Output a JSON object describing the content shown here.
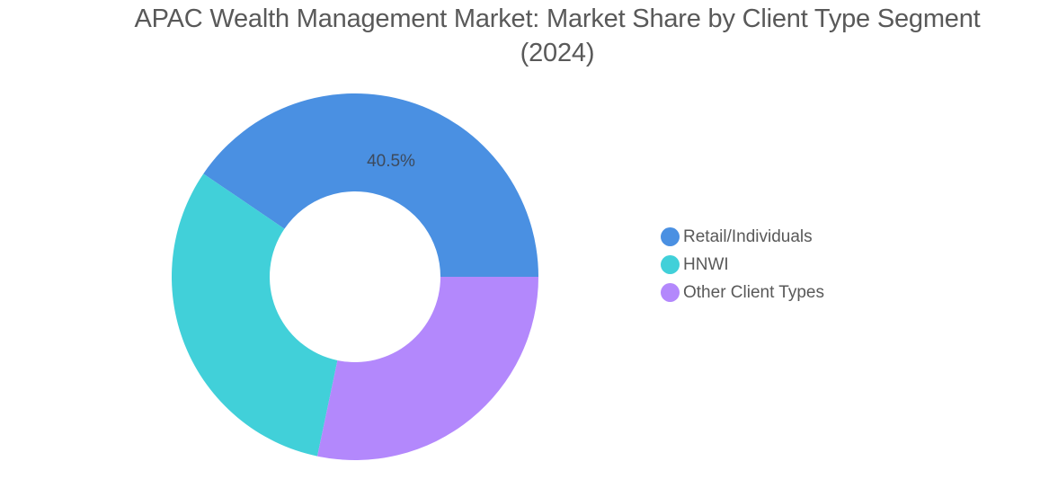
{
  "title": {
    "line1": "APAC Wealth Management Market: Market Share by Client Type Segment",
    "line2": "(2024)"
  },
  "legend": {
    "items": [
      {
        "label": "Retail/Individuals",
        "color": "#4a90e2"
      },
      {
        "label": "HNWI",
        "color": "#41d0d9"
      },
      {
        "label": "Other Client Types",
        "color": "#b388fc"
      }
    ]
  },
  "slice_labels": {
    "retail": "40.5%"
  },
  "chart_data": {
    "type": "pie",
    "variant": "donut",
    "title": "APAC Wealth Management Market: Market Share by Client Type Segment (2024)",
    "categories": [
      "Retail/Individuals",
      "HNWI",
      "Other Client Types"
    ],
    "values": [
      40.5,
      31.2,
      28.3
    ],
    "unit": "%",
    "colors": [
      "#4a90e2",
      "#41d0d9",
      "#b388fc"
    ],
    "data_labels": {
      "Retail/Individuals": "40.5%"
    },
    "legend_position": "right",
    "start_angle": "3 o'clock, counterclockwise for first slice"
  }
}
